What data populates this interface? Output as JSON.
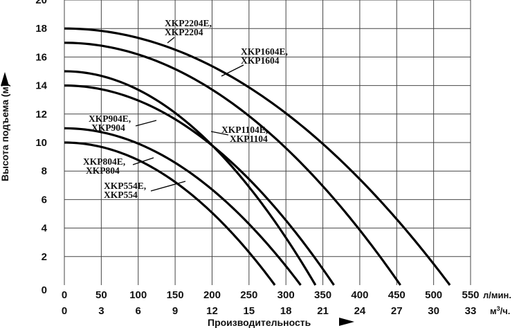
{
  "chart_data": {
    "type": "line",
    "ylabel": "Высота подъема (м)",
    "xlabel": "Производительность",
    "x_primary_unit": "л/мин.",
    "x_secondary_unit": "м³/ч.",
    "xlim": [
      0,
      550
    ],
    "ylim": [
      0,
      20
    ],
    "x_ticks_lmin": [
      "0",
      "50",
      "100",
      "150",
      "200",
      "250",
      "300",
      "350",
      "400",
      "450",
      "500",
      "550"
    ],
    "x_ticks_m3h": [
      "0",
      "3",
      "6",
      "9",
      "12",
      "15",
      "18",
      "21",
      "24",
      "27",
      "30",
      "33"
    ],
    "y_ticks": [
      "0",
      "2",
      "4",
      "6",
      "8",
      "10",
      "12",
      "14",
      "16",
      "18",
      "20"
    ],
    "grid": true,
    "series": [
      {
        "name": "XKP554E,\nXKP554",
        "shutoff_head": 10,
        "max_flow": 285
      },
      {
        "name": "XKP804E,\nXKP804",
        "shutoff_head": 11,
        "max_flow": 320
      },
      {
        "name": "XKP904E,\nXKP904",
        "shutoff_head": 14,
        "max_flow": 365
      },
      {
        "name": "XKP1104E,\nXKP1104",
        "shutoff_head": 15,
        "max_flow": 340
      },
      {
        "name": "XKP1604E,\nXKP1604",
        "shutoff_head": 17,
        "max_flow": 455
      },
      {
        "name": "XKP2204E,\nXKP2204",
        "shutoff_head": 18,
        "max_flow": 522
      }
    ]
  },
  "labels": {
    "s554_l1": "XKP554E,",
    "s554_l2": "XKP554",
    "s804_l1": "XKP804E,",
    "s804_l2": "XKP804",
    "s904_l1": "XKP904E,",
    "s904_l2": "XKP904",
    "s1104_l1": "XKP1104E,",
    "s1104_l2": "XKP1104",
    "s1604_l1": "XKP1604E,",
    "s1604_l2": "XKP1604",
    "s2204_l1": "XKP2204E,",
    "s2204_l2": "XKP2204"
  }
}
